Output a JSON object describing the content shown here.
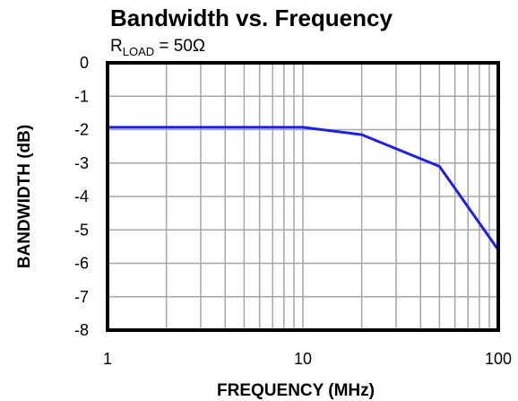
{
  "chart_data": {
    "type": "line",
    "title": "Bandwidth vs. Frequency",
    "subtitle": {
      "prefix": "R",
      "subscript": "LOAD",
      "suffix": " = 50Ω"
    },
    "xlabel": "FREQUENCY  (MHz)",
    "ylabel": "BANDWIDTH  (dB)",
    "xscale": "log",
    "xlim": [
      1,
      100
    ],
    "ylim": [
      -8,
      0
    ],
    "x_ticks": [
      {
        "value": 1,
        "label": "1"
      },
      {
        "value": 10,
        "label": "10"
      },
      {
        "value": 100,
        "label": "100"
      }
    ],
    "y_ticks": [
      {
        "value": 0,
        "label": "0"
      },
      {
        "value": -1,
        "label": "-1"
      },
      {
        "value": -2,
        "label": "-2"
      },
      {
        "value": -3,
        "label": "-3"
      },
      {
        "value": -4,
        "label": "-4"
      },
      {
        "value": -5,
        "label": "-5"
      },
      {
        "value": -6,
        "label": "-6"
      },
      {
        "value": -7,
        "label": "-7"
      },
      {
        "value": -8,
        "label": "-8"
      }
    ],
    "grid": true,
    "series": [
      {
        "color": "#1f1fe6",
        "points": [
          {
            "x": 1,
            "y": -1.93
          },
          {
            "x": 10,
            "y": -1.93
          },
          {
            "x": 20,
            "y": -2.15
          },
          {
            "x": 50,
            "y": -3.1
          },
          {
            "x": 100,
            "y": -5.6
          }
        ]
      }
    ]
  }
}
